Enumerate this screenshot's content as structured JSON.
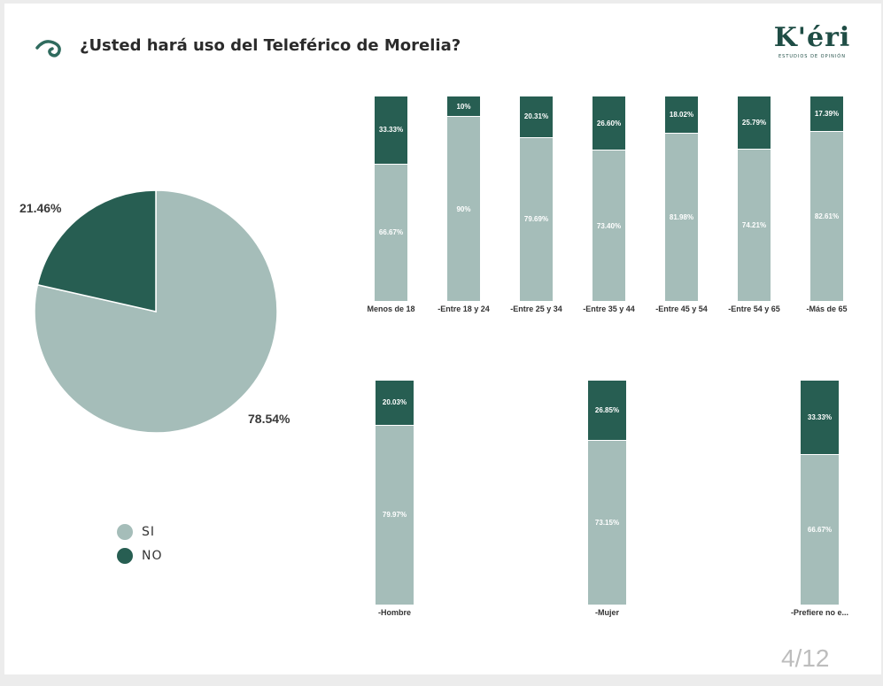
{
  "header": {
    "title": "¿Usted hará uso del Teleférico de Morelia?",
    "icon": "spiral-icon"
  },
  "logo": {
    "main": "K'éri",
    "sub": "ESTUDIOS DE OPINIÓN"
  },
  "colors": {
    "si": "#a5bdb9",
    "no": "#275e52"
  },
  "legend": [
    {
      "label": "SI",
      "color": "#a5bdb9"
    },
    {
      "label": "NO",
      "color": "#275e52"
    }
  ],
  "page": {
    "number": "4/12"
  },
  "chart_data": [
    {
      "type": "pie",
      "categories": [
        "SI",
        "NO"
      ],
      "values": [
        78.54,
        21.46
      ],
      "value_labels": [
        "78.54%",
        "21.46%"
      ]
    },
    {
      "type": "bar",
      "stacked": true,
      "categories": [
        "Menos de 18",
        "-Entre 18 y 24",
        "-Entre 25 y 34",
        "-Entre 35 y 44",
        "-Entre 45 y 54",
        "-Entre 54 y 65",
        "-Más de 65"
      ],
      "series": [
        {
          "name": "NO",
          "values": [
            33.33,
            10,
            20.31,
            26.6,
            18.02,
            25.79,
            17.39
          ],
          "labels": [
            "33.33%",
            "10%",
            "20.31%",
            "26.60%",
            "18.02%",
            "25.79%",
            "17.39%"
          ]
        },
        {
          "name": "SI",
          "values": [
            66.67,
            90,
            79.69,
            73.4,
            81.98,
            74.21,
            82.61
          ],
          "labels": [
            "66.67%",
            "90%",
            "79.69%",
            "73.40%",
            "81.98%",
            "74.21%",
            "82.61%"
          ]
        }
      ],
      "ylim": [
        0,
        100
      ]
    },
    {
      "type": "bar",
      "stacked": true,
      "categories": [
        "-Hombre",
        "-Mujer",
        "-Prefiere no e..."
      ],
      "series": [
        {
          "name": "NO",
          "values": [
            20.03,
            26.85,
            33.33
          ],
          "labels": [
            "20.03%",
            "26.85%",
            "33.33%"
          ]
        },
        {
          "name": "SI",
          "values": [
            79.97,
            73.15,
            66.67
          ],
          "labels": [
            "79.97%",
            "73.15%",
            "66.67%"
          ]
        }
      ],
      "ylim": [
        0,
        100
      ]
    }
  ]
}
